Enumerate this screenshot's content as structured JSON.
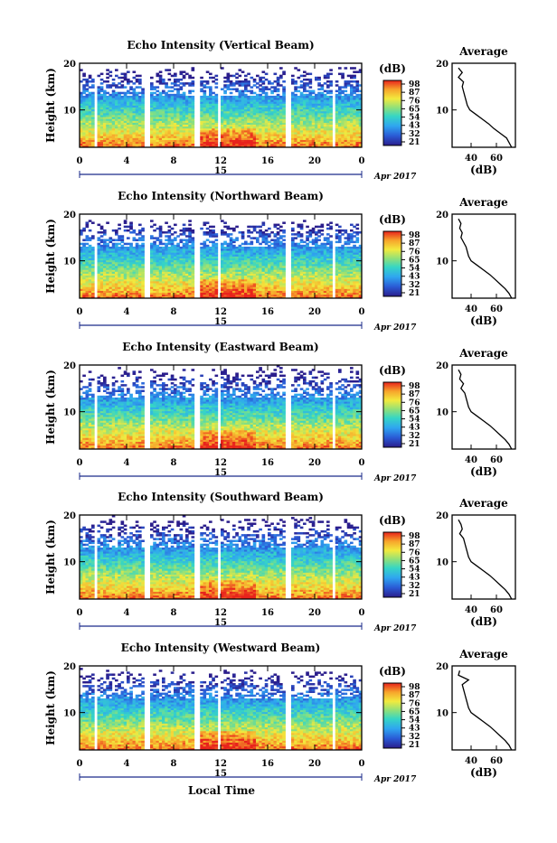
{
  "x_label": "Local Time",
  "date_text": "Apr 2017",
  "day_label": "15",
  "chart_data": [
    {
      "type": "heatmap",
      "title": "Echo Intensity (Vertical Beam)",
      "ylabel": "Height (km)",
      "xlabel": "Local Time",
      "x_ticks": [
        "0",
        "4",
        "8",
        "12",
        "16",
        "20",
        "0"
      ],
      "y_ticks": [
        "20",
        "10"
      ],
      "xlim": [
        0,
        24
      ],
      "ylim": [
        2,
        20
      ],
      "colorbar": {
        "unit": "(dB)",
        "ticks": [
          "98",
          "87",
          "76",
          "65",
          "54",
          "43",
          "32",
          "21"
        ]
      },
      "average_profile": {
        "title": "Average",
        "xlabel": "(dB)",
        "x_ticks": [
          "40",
          "60"
        ],
        "y_ticks": [
          "20",
          "10"
        ],
        "height_km": [
          19,
          18,
          17,
          16,
          15,
          14,
          13,
          12,
          11,
          10,
          9,
          8,
          7,
          6,
          5,
          4,
          3,
          2
        ],
        "db": [
          30,
          33,
          30,
          34,
          33,
          34,
          35,
          36,
          37,
          39,
          44,
          49,
          54,
          58,
          63,
          68,
          70,
          72
        ]
      }
    },
    {
      "type": "heatmap",
      "title": "Echo Intensity (Northward Beam)",
      "ylabel": "Height (km)",
      "xlabel": "Local Time",
      "x_ticks": [
        "0",
        "4",
        "8",
        "12",
        "16",
        "20",
        "0"
      ],
      "y_ticks": [
        "20",
        "10"
      ],
      "xlim": [
        0,
        24
      ],
      "ylim": [
        2,
        20
      ],
      "colorbar": {
        "unit": "(dB)",
        "ticks": [
          "98",
          "87",
          "76",
          "65",
          "54",
          "43",
          "32",
          "21"
        ]
      },
      "average_profile": {
        "title": "Average",
        "xlabel": "(dB)",
        "x_ticks": [
          "40",
          "60"
        ],
        "y_ticks": [
          "20",
          "10"
        ],
        "height_km": [
          19,
          18,
          17,
          16,
          15,
          14,
          13,
          12,
          11,
          10,
          9,
          8,
          7,
          6,
          5,
          4,
          3,
          2
        ],
        "db": [
          30,
          32,
          31,
          33,
          32,
          34,
          36,
          37,
          38,
          40,
          45,
          50,
          55,
          59,
          63,
          67,
          70,
          72
        ]
      }
    },
    {
      "type": "heatmap",
      "title": "Echo Intensity (Eastward Beam)",
      "ylabel": "Height (km)",
      "xlabel": "Local Time",
      "x_ticks": [
        "0",
        "4",
        "8",
        "12",
        "16",
        "20",
        "0"
      ],
      "y_ticks": [
        "20",
        "10"
      ],
      "xlim": [
        0,
        24
      ],
      "ylim": [
        2,
        20
      ],
      "colorbar": {
        "unit": "(dB)",
        "ticks": [
          "98",
          "87",
          "76",
          "65",
          "54",
          "43",
          "32",
          "21"
        ]
      },
      "average_profile": {
        "title": "Average",
        "xlabel": "(dB)",
        "x_ticks": [
          "40",
          "60"
        ],
        "y_ticks": [
          "20",
          "10"
        ],
        "height_km": [
          19,
          18,
          17,
          16,
          15,
          14,
          13,
          12,
          11,
          10,
          9,
          8,
          7,
          6,
          5,
          4,
          3,
          2
        ],
        "db": [
          30,
          32,
          31,
          34,
          32,
          35,
          36,
          37,
          38,
          40,
          45,
          50,
          55,
          59,
          63,
          67,
          70,
          72
        ]
      }
    },
    {
      "type": "heatmap",
      "title": "Echo Intensity (Southward Beam)",
      "ylabel": "Height (km)",
      "xlabel": "Local Time",
      "x_ticks": [
        "0",
        "4",
        "8",
        "12",
        "16",
        "20",
        "0"
      ],
      "y_ticks": [
        "20",
        "10"
      ],
      "xlim": [
        0,
        24
      ],
      "ylim": [
        2,
        20
      ],
      "colorbar": {
        "unit": "(dB)",
        "ticks": [
          "98",
          "87",
          "76",
          "65",
          "54",
          "43",
          "32",
          "21"
        ]
      },
      "average_profile": {
        "title": "Average",
        "xlabel": "(dB)",
        "x_ticks": [
          "40",
          "60"
        ],
        "y_ticks": [
          "20",
          "10"
        ],
        "height_km": [
          19,
          18,
          17,
          16,
          15,
          14,
          13,
          12,
          11,
          10,
          9,
          8,
          7,
          6,
          5,
          4,
          3,
          2
        ],
        "db": [
          30,
          32,
          33,
          31,
          34,
          35,
          36,
          37,
          38,
          40,
          45,
          50,
          55,
          59,
          63,
          67,
          70,
          72
        ]
      }
    },
    {
      "type": "heatmap",
      "title": "Echo Intensity (Westward Beam)",
      "ylabel": "Height (km)",
      "xlabel": "Local Time",
      "x_ticks": [
        "0",
        "4",
        "8",
        "12",
        "16",
        "20",
        "0"
      ],
      "y_ticks": [
        "20",
        "10"
      ],
      "xlim": [
        0,
        24
      ],
      "ylim": [
        2,
        20
      ],
      "colorbar": {
        "unit": "(dB)",
        "ticks": [
          "98",
          "87",
          "76",
          "65",
          "54",
          "43",
          "32",
          "21"
        ]
      },
      "average_profile": {
        "title": "Average",
        "xlabel": "(dB)",
        "x_ticks": [
          "40",
          "60"
        ],
        "y_ticks": [
          "20",
          "10"
        ],
        "height_km": [
          19,
          18,
          17,
          16,
          15,
          14,
          13,
          12,
          11,
          10,
          9,
          8,
          7,
          6,
          5,
          4,
          3,
          2
        ],
        "db": [
          31,
          30,
          38,
          33,
          34,
          35,
          36,
          37,
          38,
          40,
          45,
          50,
          55,
          59,
          63,
          67,
          70,
          72
        ]
      }
    }
  ]
}
